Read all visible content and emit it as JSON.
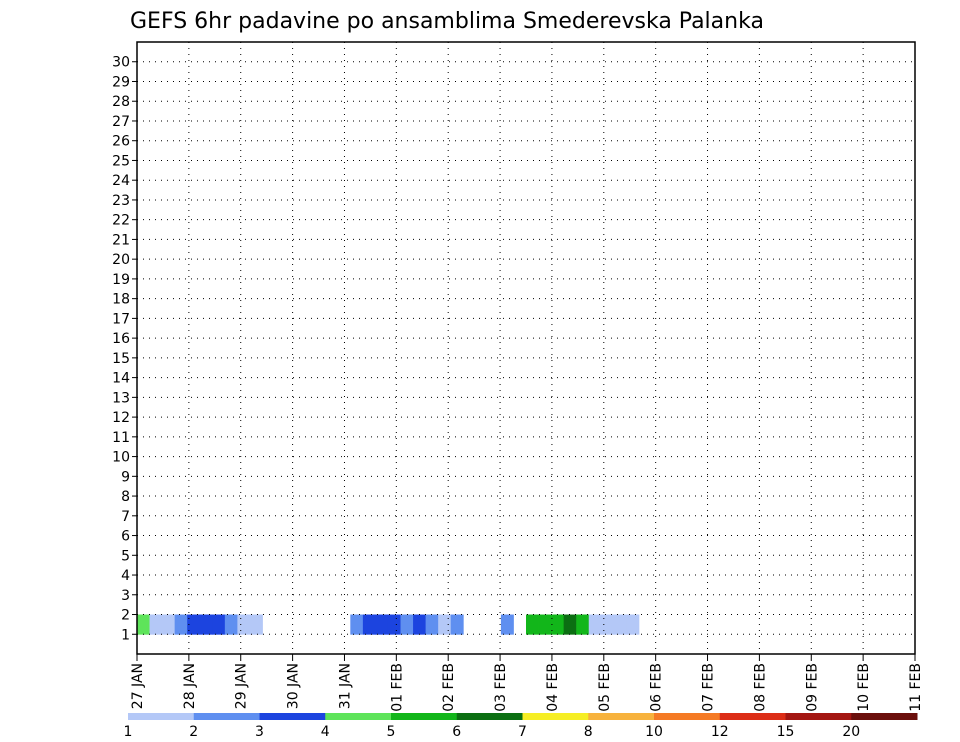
{
  "chart_data": {
    "type": "heatmap",
    "title": "GEFS 6hr padavine po ansamblima Smederevska Palanka",
    "x_ticks": [
      "27 JAN",
      "28 JAN",
      "29 JAN",
      "30 JAN",
      "31 JAN",
      "01 FEB",
      "02 FEB",
      "03 FEB",
      "04 FEB",
      "05 FEB",
      "06 FEB",
      "07 FEB",
      "08 FEB",
      "09 FEB",
      "10 FEB",
      "11 FEB"
    ],
    "y_ticks": [
      "1",
      "2",
      "3",
      "4",
      "5",
      "6",
      "7",
      "8",
      "9",
      "10",
      "11",
      "12",
      "13",
      "14",
      "15",
      "16",
      "17",
      "18",
      "19",
      "20",
      "21",
      "22",
      "23",
      "24",
      "25",
      "26",
      "27",
      "28",
      "29",
      "30"
    ],
    "members": 31,
    "steps": 62,
    "grid": "dotted",
    "colorbar": {
      "labels": [
        "1",
        "2",
        "3",
        "4",
        "5",
        "6",
        "7",
        "8",
        "10",
        "12",
        "15",
        "20"
      ],
      "colors": [
        "#b4c8f7",
        "#5f8ff0",
        "#1c44df",
        "#5ee45a",
        "#12b61a",
        "#0b6f12",
        "#f6ee24",
        "#f7b23c",
        "#f57a24",
        "#dc2d16",
        "#a41612",
        "#6b0f0c"
      ]
    },
    "values": [
      [
        0,
        0,
        0,
        0,
        0,
        0,
        0,
        0,
        0,
        0,
        0,
        0,
        0,
        0,
        0,
        0,
        0,
        0,
        0,
        0,
        0,
        0,
        0,
        0,
        0,
        0,
        0,
        0,
        0,
        0,
        0,
        0,
        0,
        0,
        0,
        0,
        0,
        0,
        0,
        0,
        0,
        0,
        0,
        0,
        0,
        0,
        0,
        0,
        0,
        0,
        0,
        0,
        0,
        0,
        0,
        0,
        0,
        0,
        0,
        0,
        0,
        0
      ],
      [
        4,
        1,
        1,
        2,
        3,
        3,
        3,
        2,
        1,
        1,
        0,
        0,
        0,
        0,
        0,
        0,
        0,
        2,
        3,
        3,
        3,
        2,
        3,
        2,
        1,
        2,
        0,
        0,
        0,
        2,
        0,
        5,
        5,
        5,
        6,
        5,
        1,
        1,
        1,
        1,
        0,
        0,
        0,
        0,
        0,
        0,
        0,
        0,
        0,
        0,
        0,
        0,
        0,
        0,
        0,
        0,
        0,
        0,
        0,
        0,
        0,
        0
      ],
      [
        0,
        0,
        0,
        0,
        0,
        0,
        0,
        0,
        0,
        0,
        0,
        0,
        0,
        0,
        0,
        0,
        0,
        0,
        0,
        0,
        0,
        0,
        0,
        0,
        0,
        0,
        0,
        0,
        0,
        0,
        0,
        0,
        0,
        0,
        0,
        0,
        0,
        0,
        0,
        0,
        0,
        0,
        0,
        0,
        0,
        0,
        0,
        0,
        0,
        0,
        0,
        0,
        0,
        0,
        0,
        0,
        0,
        0,
        0,
        0,
        0,
        0
      ]
    ]
  }
}
